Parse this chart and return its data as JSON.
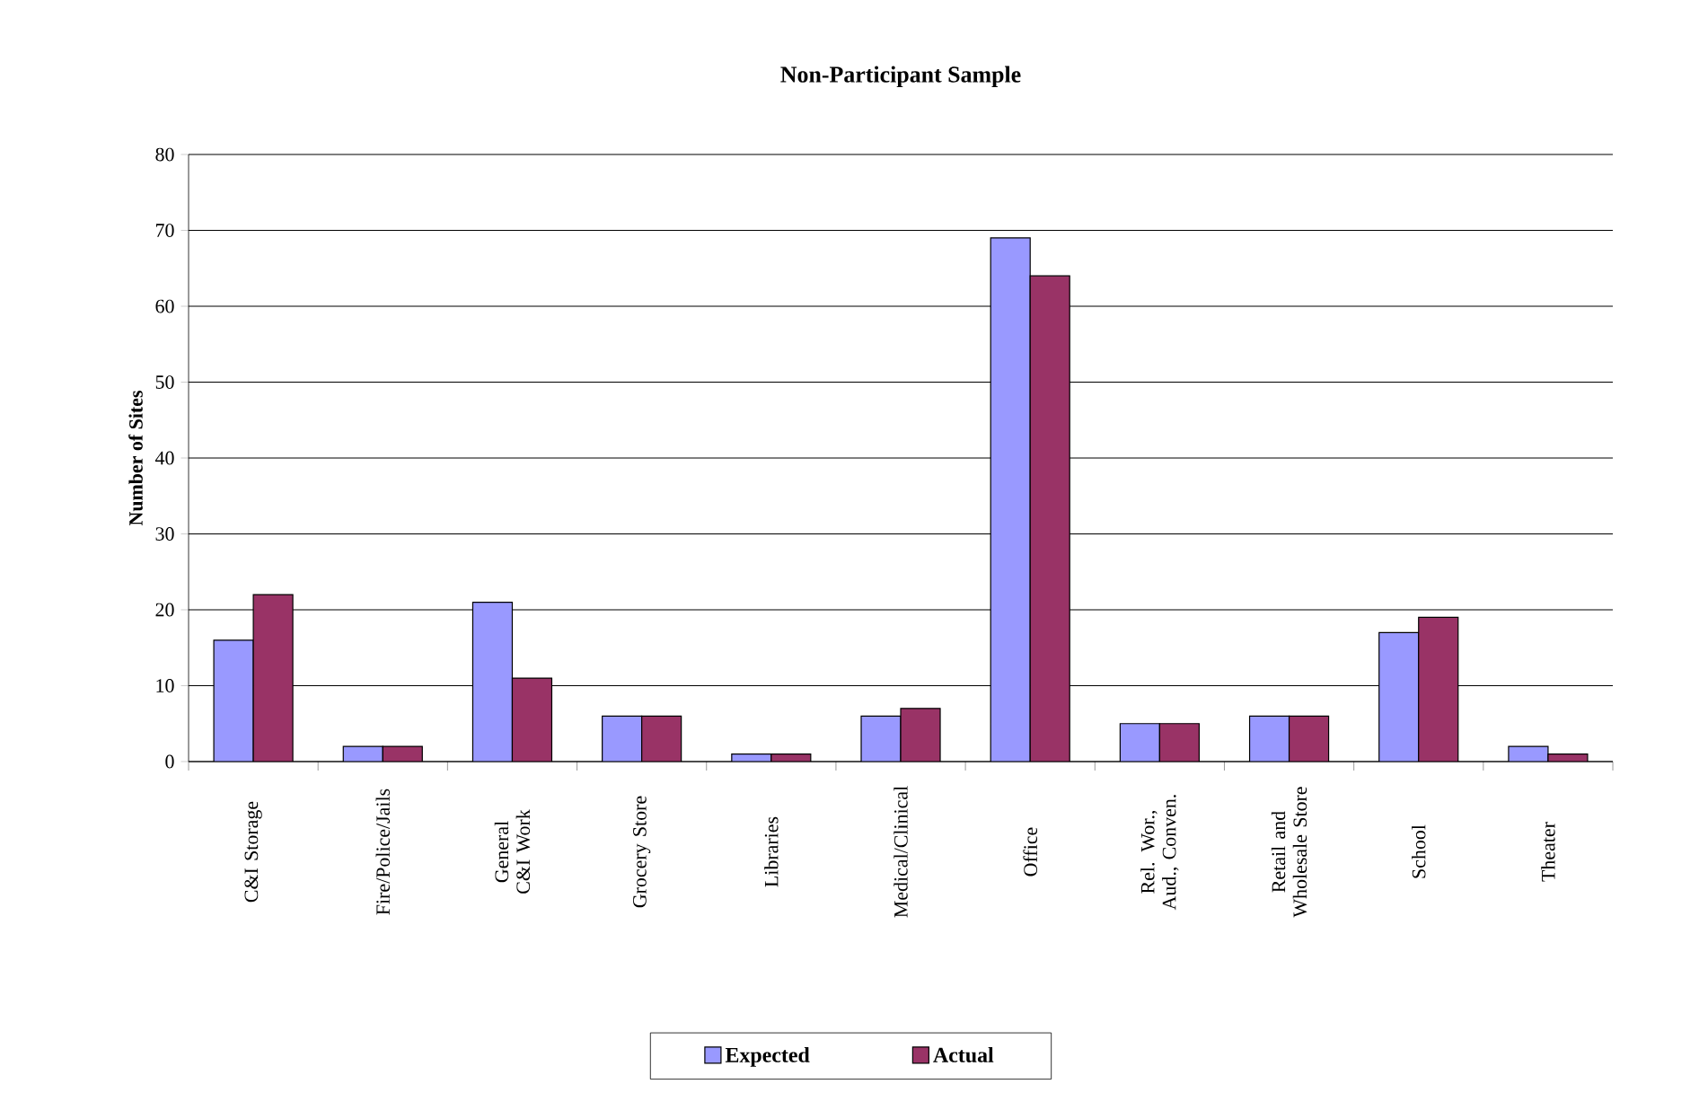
{
  "chart_data": {
    "type": "bar",
    "title": "Non-Participant Sample",
    "ylabel": "Number of Sites",
    "categories": [
      "C&I Storage",
      "Fire/Police/Jails",
      "General C&I Work",
      "Grocery Store",
      "Libraries",
      "Medical/Clinical",
      "Office",
      "Rel. Wor., Aud., Conven.",
      "Retail and Wholesale Store",
      "School",
      "Theater"
    ],
    "series": [
      {
        "name": "Expected",
        "color": "#9999ff",
        "values": [
          16,
          2,
          21,
          6,
          1,
          6,
          69,
          5,
          6,
          17,
          2
        ]
      },
      {
        "name": "Actual",
        "color": "#993366",
        "values": [
          22,
          2,
          11,
          6,
          1,
          7,
          64,
          5,
          6,
          19,
          1
        ]
      }
    ],
    "ylim": [
      0,
      80
    ],
    "yticks": [
      0,
      10,
      20,
      30,
      40,
      50,
      60,
      70,
      80
    ],
    "grid": "y",
    "legend": "bottom"
  }
}
